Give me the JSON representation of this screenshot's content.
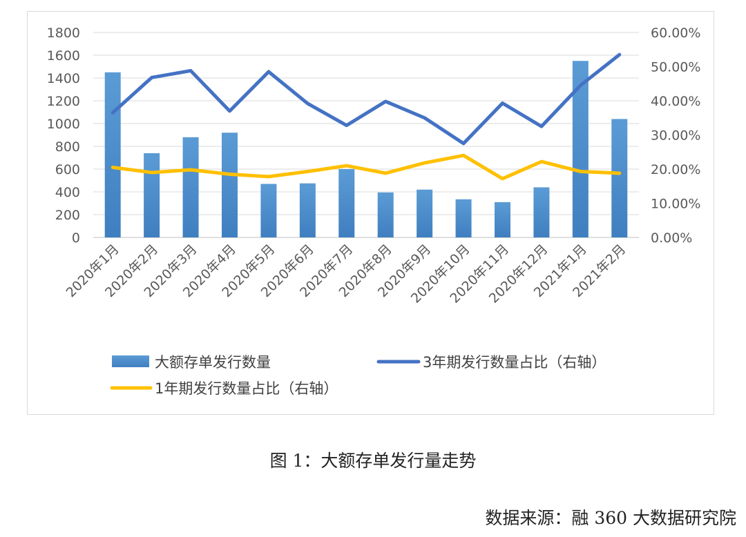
{
  "caption": "图 1：大额存单发行量走势",
  "source": "数据来源：融 360 大数据研究院",
  "chart_data": {
    "type": "bar",
    "categories": [
      "2020年1月",
      "2020年2月",
      "2020年3月",
      "2020年4月",
      "2020年5月",
      "2020年6月",
      "2020年7月",
      "2020年8月",
      "2020年9月",
      "2020年10月",
      "2020年11月",
      "2020年12月",
      "2021年1月",
      "2021年2月"
    ],
    "series": [
      {
        "name": "大额存单发行数量",
        "type": "bar",
        "axis": "left",
        "color": "#4f8fcf",
        "values": [
          1450,
          740,
          880,
          920,
          470,
          475,
          600,
          395,
          420,
          335,
          310,
          440,
          1550,
          1040
        ]
      },
      {
        "name": "3年期发行数量占比（右轴）",
        "type": "line",
        "axis": "right",
        "color": "#4472c4",
        "values": [
          36.5,
          46.8,
          48.8,
          37.0,
          48.5,
          39.2,
          32.8,
          39.8,
          35.0,
          27.5,
          39.3,
          32.5,
          44.5,
          53.5
        ]
      },
      {
        "name": "1年期发行数量占比（右轴）",
        "type": "line",
        "axis": "right",
        "color": "#ffc000",
        "values": [
          20.5,
          19.0,
          19.8,
          18.5,
          17.8,
          19.3,
          21.0,
          18.8,
          21.8,
          24.0,
          17.2,
          22.2,
          19.3,
          18.8
        ]
      }
    ],
    "ylim": [
      0,
      1800
    ],
    "y2lim": [
      0,
      60
    ],
    "yticks": [
      "0",
      "200",
      "400",
      "600",
      "800",
      "1000",
      "1200",
      "1400",
      "1600",
      "1800"
    ],
    "y2ticks": [
      "0.00%",
      "10.00%",
      "20.00%",
      "30.00%",
      "40.00%",
      "50.00%",
      "60.00%"
    ],
    "grid": true,
    "legend": "bottom"
  }
}
